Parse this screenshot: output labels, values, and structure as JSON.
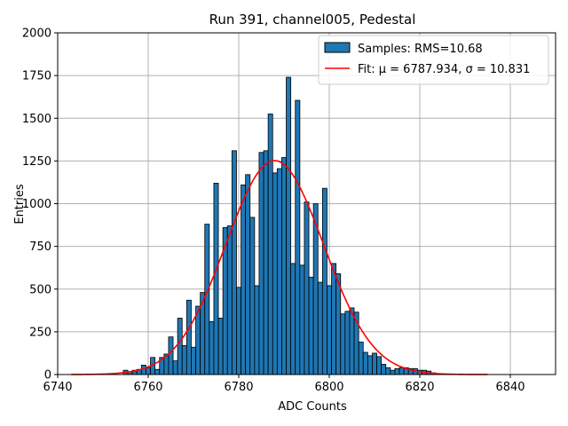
{
  "chart_data": {
    "type": "bar",
    "title": "Run 391, channel005, Pedestal",
    "xlabel": "ADC Counts",
    "ylabel": "Entries",
    "xlim": [
      6740,
      6850
    ],
    "ylim": [
      0,
      2000
    ],
    "xticks": [
      6740,
      6760,
      6780,
      6800,
      6820,
      6840
    ],
    "yticks": [
      0,
      250,
      500,
      750,
      1000,
      1250,
      1500,
      1750,
      2000
    ],
    "grid": true,
    "legend_position": "top-right",
    "bin_width": 1,
    "histogram": {
      "name": "Samples: RMS=10.68",
      "color": "#1f77b4",
      "edgecolor": "#000000",
      "x": [
        6755,
        6756,
        6757,
        6758,
        6759,
        6760,
        6761,
        6762,
        6763,
        6764,
        6765,
        6766,
        6767,
        6768,
        6769,
        6770,
        6771,
        6772,
        6773,
        6774,
        6775,
        6776,
        6777,
        6778,
        6779,
        6780,
        6781,
        6782,
        6783,
        6784,
        6785,
        6786,
        6787,
        6788,
        6789,
        6790,
        6791,
        6792,
        6793,
        6794,
        6795,
        6796,
        6797,
        6798,
        6799,
        6800,
        6801,
        6802,
        6803,
        6804,
        6805,
        6806,
        6807,
        6808,
        6809,
        6810,
        6811,
        6812,
        6813,
        6814,
        6815,
        6816,
        6817,
        6818,
        6819,
        6820,
        6821,
        6822,
        6823
      ],
      "values": [
        25,
        15,
        25,
        30,
        55,
        40,
        100,
        30,
        100,
        120,
        220,
        80,
        330,
        170,
        435,
        160,
        400,
        480,
        880,
        310,
        1120,
        330,
        860,
        870,
        1310,
        510,
        1110,
        1170,
        920,
        520,
        1300,
        1310,
        1525,
        1180,
        1205,
        1270,
        1740,
        650,
        1605,
        640,
        1010,
        570,
        1000,
        540,
        1090,
        520,
        650,
        590,
        355,
        370,
        390,
        365,
        190,
        130,
        110,
        125,
        105,
        60,
        40,
        25,
        35,
        40,
        40,
        35,
        35,
        25,
        25,
        20,
        10
      ]
    },
    "fit": {
      "name": "Fit: μ = 6787.934, σ = 10.831",
      "color": "#ff0000",
      "mu": 6787.934,
      "sigma": 10.831,
      "amplitude": 1252,
      "x_range": [
        6743,
        6835
      ]
    }
  }
}
